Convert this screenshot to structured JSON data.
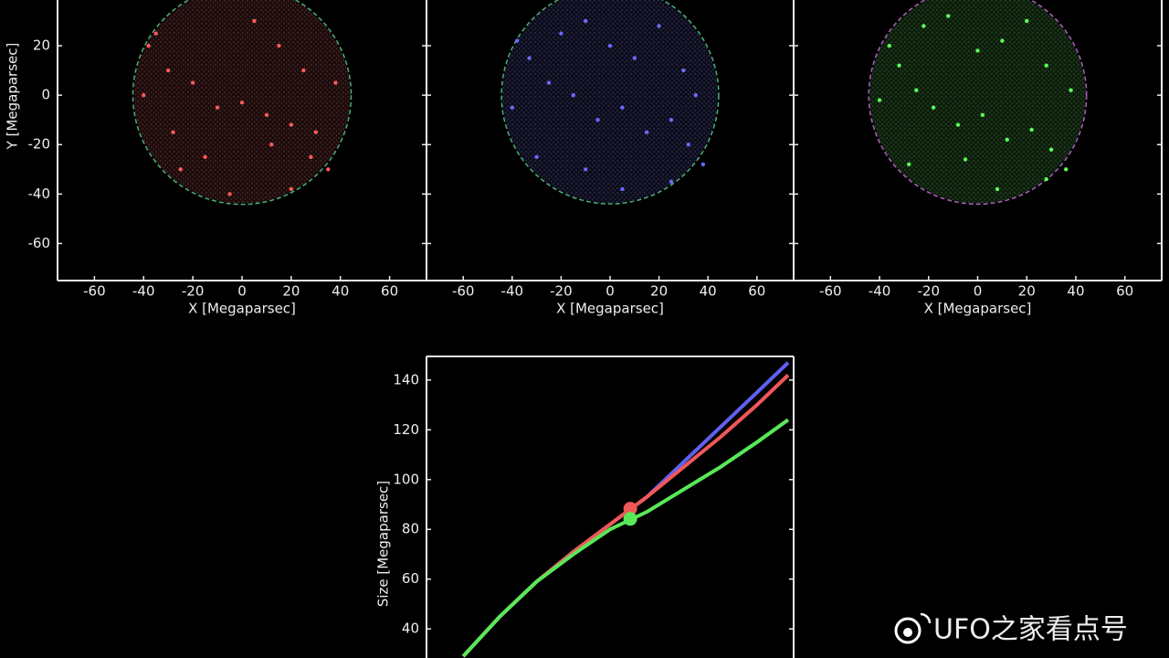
{
  "chart_data": [
    {
      "type": "scatter",
      "color": "#ff5a5a",
      "x": [
        -38,
        -35,
        -30,
        -20,
        -10,
        0,
        10,
        20,
        30,
        28,
        35,
        -25,
        -15,
        5,
        15,
        25,
        38,
        -40,
        -5,
        20,
        -28,
        12
      ],
      "y": [
        20,
        25,
        10,
        5,
        -5,
        -3,
        -8,
        -12,
        -15,
        -25,
        -30,
        -30,
        -25,
        30,
        20,
        10,
        5,
        0,
        -40,
        -38,
        -15,
        -20
      ],
      "boundary": {
        "center_x": 0,
        "center_y": 0,
        "radius": 44,
        "color": "#4caf7a"
      },
      "xlim": [
        -75,
        75
      ],
      "ylim": [
        -75,
        38.5
      ],
      "xticks": [
        -60,
        -40,
        -20,
        0,
        20,
        40,
        60
      ],
      "yticks": [
        -60,
        -40,
        -20,
        0,
        20
      ],
      "show_ytick_labels": true,
      "xlabel": "X [Megaparsec]",
      "ylabel": "Y [Megaparsec]"
    },
    {
      "type": "scatter",
      "color": "#6a6aff",
      "x": [
        -38,
        -33,
        -25,
        -15,
        -5,
        5,
        15,
        25,
        32,
        38,
        30,
        -20,
        -10,
        0,
        10,
        20,
        -40,
        -30,
        5,
        25,
        -10,
        35
      ],
      "y": [
        22,
        15,
        5,
        0,
        -10,
        -5,
        -15,
        -10,
        -20,
        -28,
        10,
        25,
        30,
        20,
        15,
        28,
        -5,
        -25,
        -38,
        -35,
        -30,
        0
      ],
      "boundary": {
        "center_x": 0,
        "center_y": 0,
        "radius": 44,
        "color": "#4caf7a"
      },
      "xlim": [
        -75,
        75
      ],
      "ylim": [
        -75,
        38.5
      ],
      "xticks": [
        -60,
        -40,
        -20,
        0,
        20,
        40,
        60
      ],
      "yticks": [
        -60,
        -40,
        -20,
        0,
        20
      ],
      "show_ytick_labels": false,
      "xlabel": "X [Megaparsec]"
    },
    {
      "type": "scatter",
      "color": "#5aff5a",
      "x": [
        -36,
        -32,
        -25,
        -18,
        -8,
        2,
        12,
        22,
        30,
        36,
        28,
        -22,
        -12,
        0,
        10,
        20,
        -40,
        -28,
        8,
        28,
        -5,
        38
      ],
      "y": [
        20,
        12,
        2,
        -5,
        -12,
        -8,
        -18,
        -14,
        -22,
        -30,
        12,
        28,
        32,
        18,
        22,
        30,
        -2,
        -28,
        -38,
        -34,
        -26,
        2
      ],
      "boundary": {
        "center_x": 0,
        "center_y": 0,
        "radius": 44,
        "color": "#b060c0"
      },
      "xlim": [
        -75,
        75
      ],
      "ylim": [
        -75,
        38.5
      ],
      "xticks": [
        -60,
        -40,
        -20,
        0,
        20,
        40,
        60
      ],
      "yticks": [
        -60,
        -40,
        -20,
        0,
        20
      ],
      "show_ytick_labels": false,
      "xlabel": "X [Megaparsec]"
    },
    {
      "type": "line",
      "x": [
        1,
        2,
        3,
        4,
        5,
        6,
        7,
        8,
        9,
        9.85
      ],
      "series": [
        {
          "color": "#6060f0",
          "values": [
            29,
            45,
            59,
            71,
            82,
            93,
            107,
            121,
            135,
            147
          ]
        },
        {
          "color": "#f05858",
          "values": [
            29,
            45,
            59,
            71,
            82,
            93,
            105,
            117,
            130,
            142
          ],
          "marker": {
            "x": 5.55,
            "y": 88.3
          }
        },
        {
          "color": "#58e858",
          "values": [
            29,
            45,
            59,
            70,
            80,
            87,
            96,
            105,
            115,
            124
          ],
          "marker": {
            "x": 5.55,
            "y": 84.2
          }
        }
      ],
      "xlim": [
        0,
        10
      ],
      "ylim": [
        28.3,
        149.5
      ],
      "yticks": [
        40,
        60,
        80,
        100,
        120,
        140
      ],
      "ylabel": "Size [Megaparsec]"
    }
  ],
  "watermark": "UFO之家看点号"
}
